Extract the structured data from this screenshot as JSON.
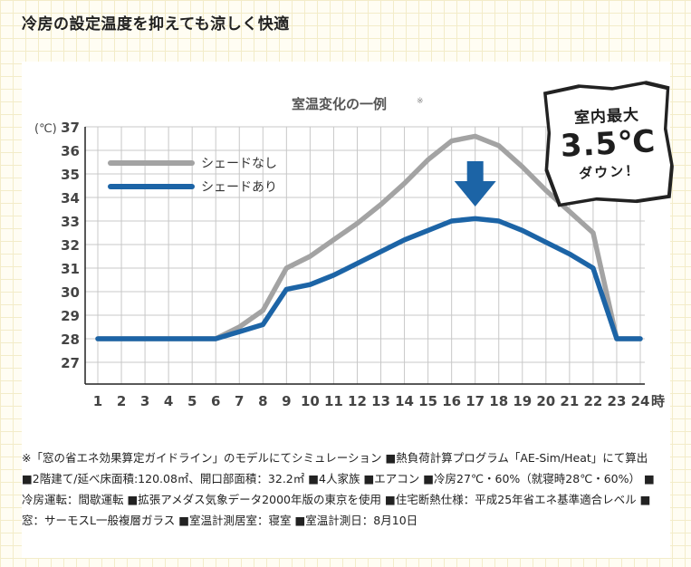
{
  "heading": "冷房の設定温度を抑えても涼しく快適",
  "badge": {
    "line1": "室内最大",
    "line2": "3.5℃",
    "line3": "ダウン！"
  },
  "colors": {
    "no_shade": "#a3a3a3",
    "with_shade": "#1c64a6",
    "arrow": "#1c64a6",
    "axis": "#222222",
    "grid": "#c8c8c8"
  },
  "chart_data": {
    "type": "line",
    "title": "室温変化の一例",
    "title_note": "※",
    "y_unit": "(℃)",
    "x_unit": "時",
    "ylim": [
      27,
      37
    ],
    "yticks": [
      27,
      28,
      29,
      30,
      31,
      32,
      33,
      34,
      35,
      36,
      37
    ],
    "x": [
      1,
      2,
      3,
      4,
      5,
      6,
      7,
      8,
      9,
      10,
      11,
      12,
      13,
      14,
      15,
      16,
      17,
      18,
      19,
      20,
      21,
      22,
      23,
      24
    ],
    "grid": true,
    "legend_position": "top-left",
    "series": [
      {
        "name": "シェードなし",
        "color": "#a3a3a3",
        "values": [
          28,
          28,
          28,
          28,
          28,
          28,
          28.5,
          29.2,
          31.0,
          31.5,
          32.2,
          32.9,
          33.7,
          34.6,
          35.6,
          36.4,
          36.6,
          36.2,
          35.3,
          34.3,
          33.4,
          32.5,
          28.0,
          28.0
        ]
      },
      {
        "name": "シェードあり",
        "color": "#1c64a6",
        "values": [
          28,
          28,
          28,
          28,
          28,
          28,
          28.3,
          28.6,
          30.1,
          30.3,
          30.7,
          31.2,
          31.7,
          32.2,
          32.6,
          33.0,
          33.1,
          33.0,
          32.6,
          32.1,
          31.6,
          31.0,
          28.0,
          28.0
        ]
      }
    ],
    "annotation": "down-arrow at 17"
  },
  "notes": "※「窓の省エネ効果算定ガイドライン」のモデルにてシミュレーション ■熱負荷計算プログラム「AE-Sim/Heat」にて算出 ■2階建て/延べ床面積:120.08㎡、開口部面積：32.2㎡ ■4人家族 ■エアコン ■冷房27℃・60%（就寝時28℃・60%） ■冷房運転：間歇運転 ■拡張アメダス気象データ2000年版の東京を使用 ■住宅断熱仕様：平成25年省エネ基準適合レベル ■窓：サーモスL一般複層ガラス ■室温計測居室：寝室 ■室温計測日：8月10日"
}
